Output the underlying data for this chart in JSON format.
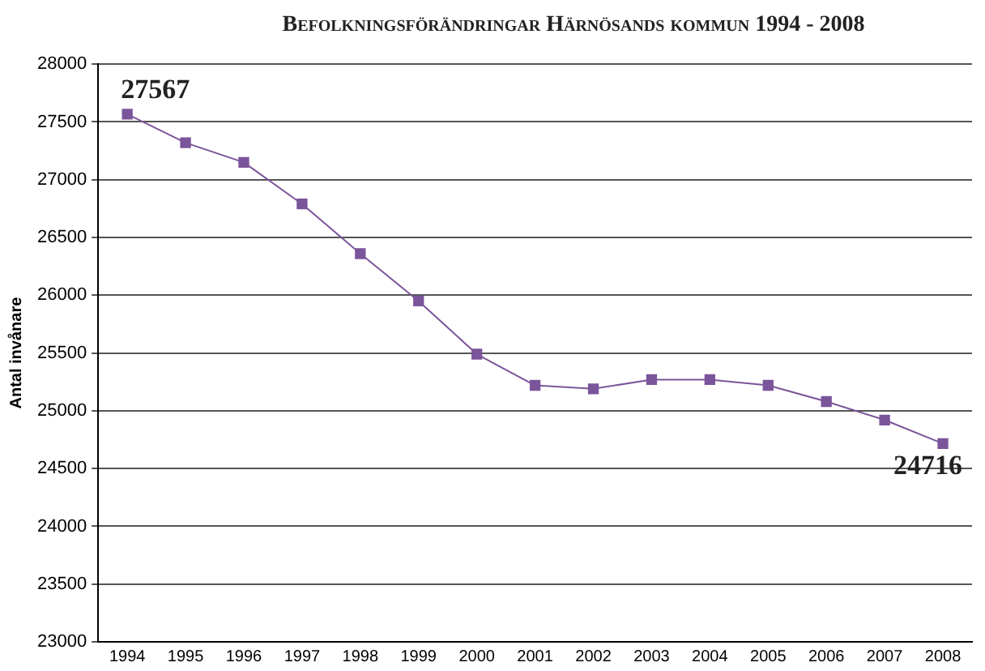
{
  "chart_data": {
    "type": "line",
    "title": "Befolkningsförändringar Härnösands kommun 1994 - 2008",
    "ylabel": "Antal invånare",
    "categories": [
      "1994",
      "1995",
      "1996",
      "1997",
      "1998",
      "1999",
      "2000",
      "2001",
      "2002",
      "2003",
      "2004",
      "2005",
      "2006",
      "2007",
      "2008"
    ],
    "series": [
      {
        "color": "#7b559b",
        "values": [
          27567,
          27320,
          27150,
          26790,
          26360,
          25950,
          25490,
          25220,
          25190,
          25270,
          25270,
          25220,
          25080,
          24920,
          24716
        ],
        "value_labels": [
          "27567",
          null,
          null,
          null,
          null,
          null,
          null,
          null,
          null,
          null,
          null,
          null,
          null,
          null,
          "24716"
        ]
      }
    ],
    "ylim": [
      23000,
      28000
    ],
    "yticks": [
      23000,
      23500,
      24000,
      24500,
      25000,
      25500,
      26000,
      26500,
      27000,
      27500,
      28000
    ],
    "grid": "y",
    "legend": false,
    "marker": "square",
    "line_style": "solid"
  }
}
